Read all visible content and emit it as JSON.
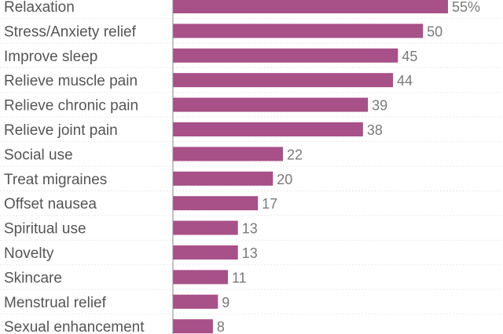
{
  "chart_data": {
    "type": "bar",
    "orientation": "horizontal",
    "categories": [
      "Relaxation",
      "Stress/Anxiety relief",
      "Improve sleep",
      "Relieve muscle pain",
      "Relieve chronic pain",
      "Relieve joint pain",
      "Social use",
      "Treat migraines",
      "Offset nausea",
      "Spiritual use",
      "Novelty",
      "Skincare",
      "Menstrual relief",
      "Sexual enhancement"
    ],
    "values": [
      55,
      50,
      45,
      44,
      39,
      38,
      22,
      20,
      17,
      13,
      13,
      11,
      9,
      8
    ],
    "value_labels": [
      "55%",
      "50",
      "45",
      "44",
      "39",
      "38",
      "22",
      "20",
      "17",
      "13",
      "13",
      "11",
      "9",
      "8"
    ],
    "unit": "%",
    "xlim": [
      0,
      66
    ],
    "bar_color": "#a85088",
    "grid": true,
    "legend": "none"
  }
}
